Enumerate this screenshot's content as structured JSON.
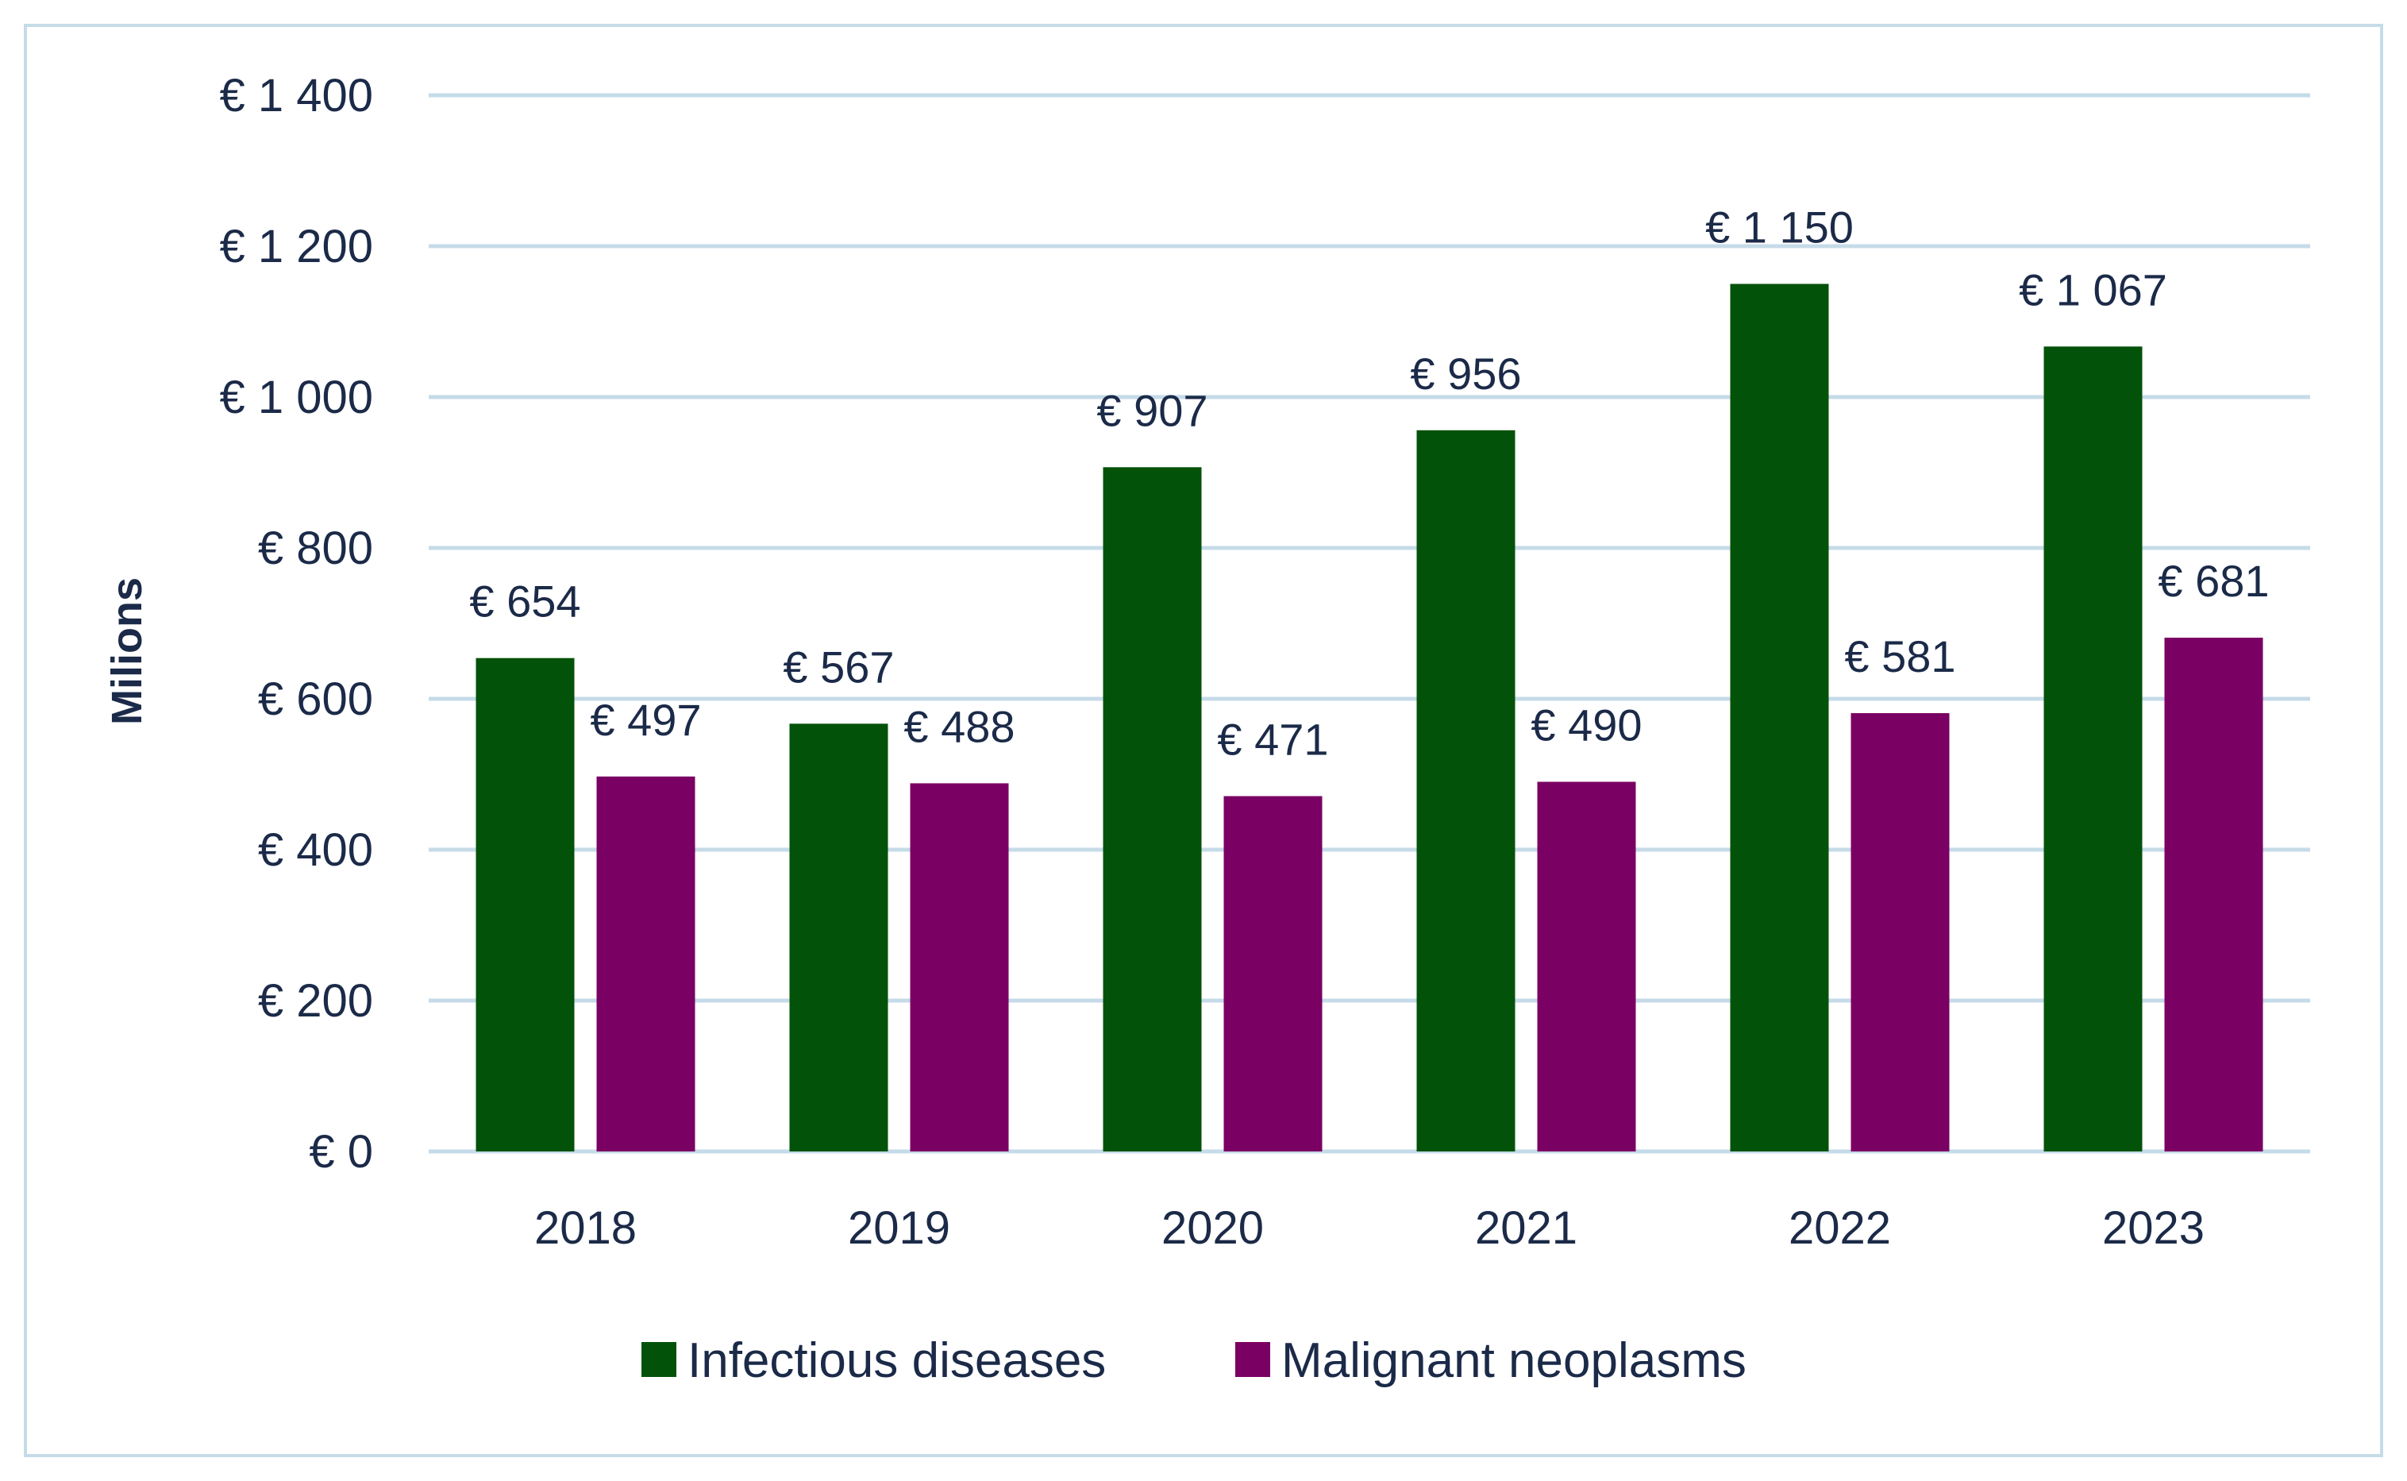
{
  "chart_data": {
    "type": "bar",
    "ylabel": "Milions",
    "xlabel": "",
    "categories": [
      "2018",
      "2019",
      "2020",
      "2021",
      "2022",
      "2023"
    ],
    "series": [
      {
        "name": "Infectious diseases",
        "color": "#035209",
        "values": [
          654,
          567,
          907,
          956,
          1150,
          1067
        ],
        "labels": [
          "€ 654",
          "€ 567",
          "€ 907",
          "€ 956",
          "€ 1 150",
          "€ 1 067"
        ]
      },
      {
        "name": "Malignant neoplasms",
        "color": "#7a0063",
        "values": [
          497,
          488,
          471,
          490,
          581,
          681
        ],
        "labels": [
          "€ 497",
          "€ 488",
          "€ 471",
          "€ 490",
          "€ 581",
          "€ 681"
        ]
      }
    ],
    "ylim": [
      0,
      1400
    ],
    "yticks": [
      0,
      200,
      400,
      600,
      800,
      1000,
      1200,
      1400
    ],
    "ytick_labels": [
      "€  0",
      "€  200",
      "€  400",
      "€  600",
      "€  800",
      "€ 1 000",
      "€ 1 200",
      "€ 1 400"
    ],
    "grid": true,
    "gridline_color": "#c6dbe8",
    "legend_position": "bottom"
  }
}
